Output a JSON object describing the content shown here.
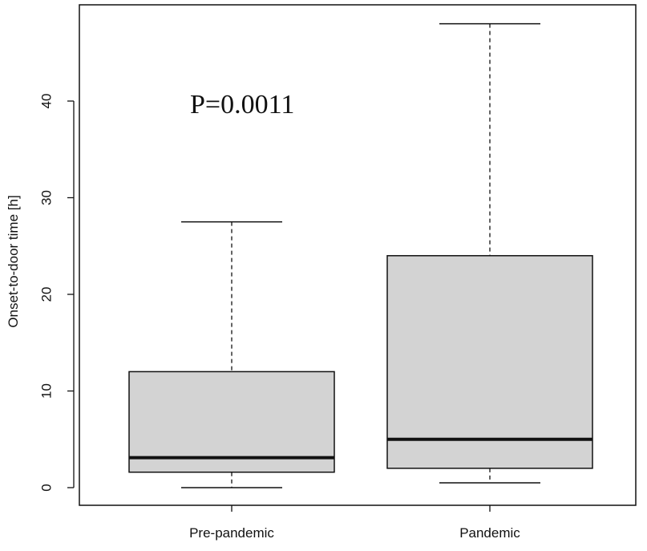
{
  "chart_data": {
    "type": "boxplot",
    "title": "",
    "xlabel": "",
    "ylabel": "Onset-to-door time [h]",
    "ylim": [
      0,
      48
    ],
    "yticks": [
      "0",
      "10",
      "20",
      "30",
      "40"
    ],
    "categories": [
      "Pre-pandemic",
      "Pandemic"
    ],
    "boxes": [
      {
        "min": 0,
        "q1": 1.6,
        "median": 3.1,
        "q3": 12,
        "max": 27.5
      },
      {
        "min": 0.5,
        "q1": 2.0,
        "median": 5.0,
        "q3": 24,
        "max": 48
      }
    ],
    "annotation": "P=0.0011",
    "box_fill": "#d3d3d3",
    "line_color": "#111111"
  }
}
